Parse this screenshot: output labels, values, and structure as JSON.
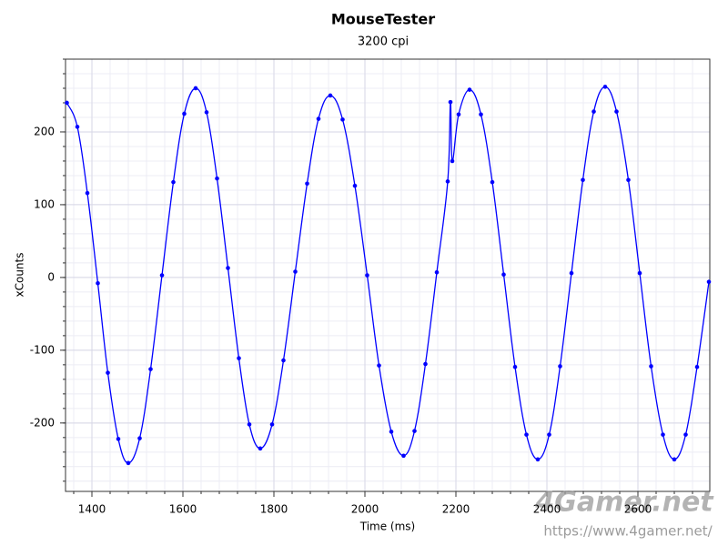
{
  "chart_data": {
    "type": "line",
    "title": "MouseTester",
    "subtitle": "3200 cpi",
    "xlabel": "Time (ms)",
    "ylabel": "xCounts",
    "color": "#0000ff",
    "grid": true,
    "xlim": [
      1342,
      2758
    ],
    "ylim": [
      -294,
      300
    ],
    "xticks": [
      1400,
      1600,
      1800,
      2000,
      2200,
      2400,
      2600
    ],
    "yticks": [
      -200,
      -100,
      0,
      100,
      200
    ],
    "minor_xticks": [
      1360,
      1400,
      1440,
      1480,
      1520,
      1560,
      1600,
      1640,
      1680,
      1720,
      1760,
      1800,
      1840,
      1880,
      1920,
      1960,
      2000,
      2040,
      2080,
      2120,
      2160,
      2200,
      2240,
      2280,
      2320,
      2360,
      2400,
      2440,
      2480,
      2520,
      2560,
      2600,
      2640,
      2680,
      2720
    ],
    "minor_yticks": [
      -280,
      -260,
      -240,
      -220,
      -200,
      -180,
      -160,
      -140,
      -120,
      -100,
      -80,
      -60,
      -40,
      -20,
      0,
      20,
      40,
      60,
      80,
      100,
      120,
      140,
      160,
      180,
      200,
      220,
      240,
      260,
      280,
      300
    ],
    "x": [
      1345,
      1368,
      1390,
      1413,
      1435,
      1458,
      1480,
      1505,
      1529,
      1554,
      1579,
      1603,
      1628,
      1652,
      1675,
      1699,
      1723,
      1746,
      1770,
      1796,
      1821,
      1847,
      1873,
      1898,
      1924,
      1951,
      1978,
      2005,
      2031,
      2058,
      2085,
      2109,
      2133,
      2158,
      2182,
      2188,
      2192,
      2206,
      2230,
      2255,
      2280,
      2305,
      2330,
      2355,
      2380,
      2405,
      2429,
      2454,
      2479,
      2503,
      2528,
      2553,
      2579,
      2604,
      2629,
      2655,
      2680,
      2705,
      2730,
      2756
    ],
    "values": [
      240,
      207,
      116,
      -8,
      -131,
      -222,
      -255,
      -221,
      -126,
      3,
      131,
      225,
      260,
      227,
      136,
      13,
      -111,
      -202,
      -235,
      -202,
      -114,
      8,
      129,
      218,
      250,
      217,
      126,
      3,
      -121,
      -212,
      -245,
      -211,
      -119,
      7,
      132,
      241,
      160,
      224,
      258,
      224,
      131,
      4,
      -123,
      -216,
      -250,
      -216,
      -122,
      6,
      134,
      228,
      262,
      228,
      134,
      6,
      -122,
      -216,
      -250,
      -216,
      -123,
      -6
    ]
  },
  "watermark": {
    "brand": "4Gamer.net",
    "url": "https://www.4gamer.net/"
  }
}
